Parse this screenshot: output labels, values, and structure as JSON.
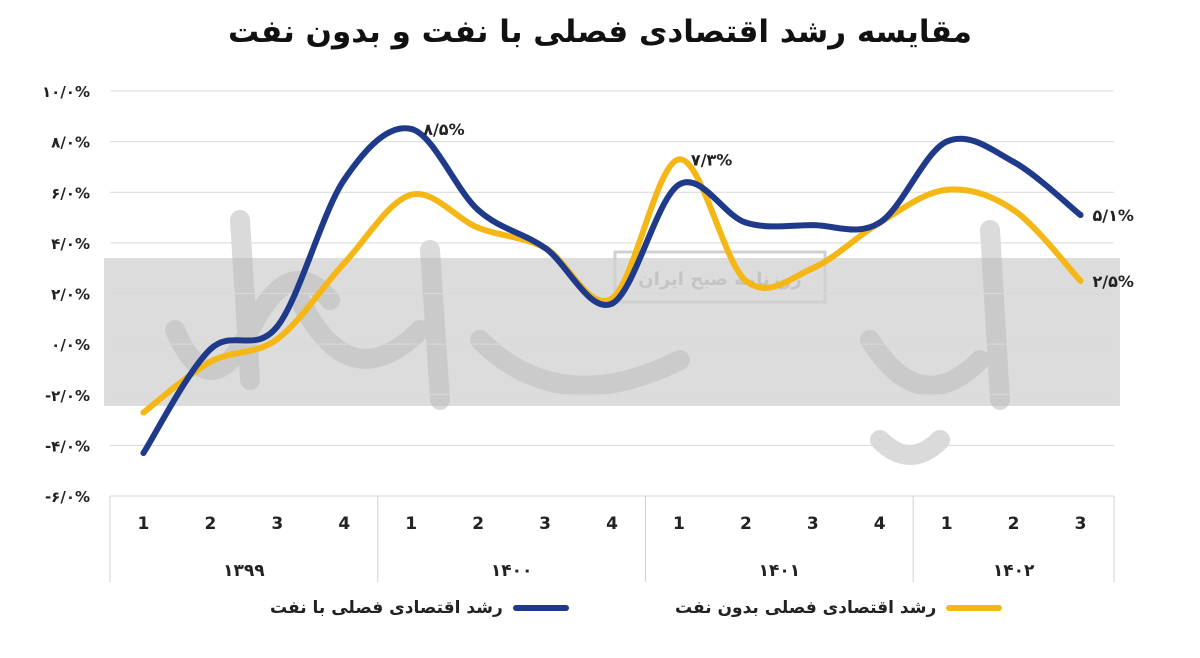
{
  "chart_data": {
    "type": "line",
    "title": "مقایسه رشد اقتصادی فصلی با نفت و بدون نفت",
    "x_labels": [
      "1",
      "2",
      "3",
      "4",
      "1",
      "2",
      "3",
      "4",
      "1",
      "2",
      "3",
      "4",
      "1",
      "2",
      "3"
    ],
    "year_groups": [
      {
        "label": "۱۳۹۹",
        "quarters": 4
      },
      {
        "label": "۱۴۰۰",
        "quarters": 4
      },
      {
        "label": "۱۴۰۱",
        "quarters": 4
      },
      {
        "label": "۱۴۰۲",
        "quarters": 3
      }
    ],
    "y_ticks": [
      {
        "value": 10,
        "label": "۱۰/۰%"
      },
      {
        "value": 8,
        "label": "۸/۰%"
      },
      {
        "value": 6,
        "label": "۶/۰%"
      },
      {
        "value": 4,
        "label": "۴/۰%"
      },
      {
        "value": 2,
        "label": "۲/۰%"
      },
      {
        "value": 0,
        "label": "۰/۰%"
      },
      {
        "value": -2,
        "label": "-۲/۰%"
      },
      {
        "value": -4,
        "label": "-۴/۰%"
      },
      {
        "value": -6,
        "label": "-۶/۰%"
      }
    ],
    "ylim": [
      -6,
      10
    ],
    "grid": true,
    "legend_position": "bottom",
    "series": [
      {
        "name": "رشد اقتصادی فصلی با نفت",
        "color": "#1f3a8a",
        "values": [
          -4.3,
          -0.2,
          0.7,
          6.5,
          8.5,
          5.3,
          3.8,
          1.6,
          6.3,
          4.8,
          4.7,
          4.8,
          8.0,
          7.2,
          5.1
        ],
        "labels": [
          {
            "index": 4,
            "text": "۸/۵%"
          },
          {
            "index": 14,
            "text": "۵/۱%"
          }
        ]
      },
      {
        "name": "رشد اقتصادی فصلی بدون نفت",
        "color": "#f5b715",
        "values": [
          -2.7,
          -0.7,
          0.2,
          3.2,
          5.9,
          4.6,
          3.8,
          1.8,
          7.3,
          2.5,
          3.0,
          4.8,
          6.1,
          5.3,
          2.5
        ],
        "labels": [
          {
            "index": 8,
            "text": "۷/۳%"
          },
          {
            "index": 14,
            "text": "۲/۵%"
          }
        ]
      }
    ]
  },
  "watermark": {
    "brand": "دنیای اقتصاد",
    "subtitle": "روزنامه صبح ایران"
  }
}
